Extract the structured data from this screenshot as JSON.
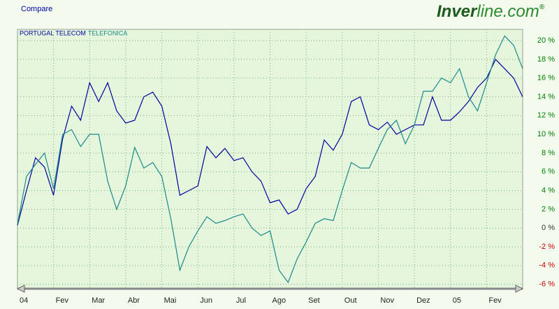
{
  "header": {
    "link": "Compare",
    "logo_brand": "Inver",
    "logo_rest": "line.com",
    "logo_mark": "®"
  },
  "chart_data": {
    "type": "line",
    "categories": [
      "04",
      null,
      null,
      null,
      "Fev",
      null,
      null,
      null,
      "Mar",
      null,
      null,
      null,
      "Abr",
      null,
      null,
      null,
      "Mai",
      null,
      null,
      null,
      "Jun",
      null,
      null,
      null,
      "Jul",
      null,
      null,
      null,
      "Ago",
      null,
      null,
      null,
      "Set",
      null,
      null,
      null,
      "Out",
      null,
      null,
      null,
      "Nov",
      null,
      null,
      null,
      "Dez",
      null,
      null,
      null,
      "05",
      null,
      null,
      null,
      "Fev",
      null,
      null,
      null,
      null
    ],
    "series": [
      {
        "name": "PORTUGAL TELECOM",
        "color": "#0000a0",
        "values": [
          0.3,
          4,
          7.5,
          6.5,
          3.5,
          9.5,
          13,
          11.5,
          15.5,
          13.5,
          15.5,
          12.5,
          11.2,
          11.5,
          14,
          14.5,
          13,
          9,
          3.5,
          4,
          4.5,
          8.7,
          7.5,
          8.5,
          7.2,
          7.5,
          6,
          5,
          2.7,
          3,
          1.5,
          2,
          4.2,
          5.5,
          9.4,
          8.3,
          10,
          13.5,
          14,
          11,
          10.5,
          11.3,
          10,
          10.5,
          11,
          11,
          14,
          11.5,
          11.5,
          12.4,
          13.5,
          15,
          16,
          18,
          17,
          16,
          14
        ]
      },
      {
        "name": "TELEFONICA",
        "color": "#1a8a8a",
        "values": [
          0.4,
          5.5,
          6.8,
          8,
          4.2,
          10,
          10.5,
          8.7,
          10,
          10,
          5,
          2,
          4.5,
          8.6,
          6.4,
          7,
          5.5,
          1,
          -4.5,
          -2,
          -0.3,
          1.2,
          0.5,
          0.8,
          1.2,
          1.5,
          0,
          -0.8,
          -0.3,
          -4.5,
          -5.8,
          -3.3,
          -1.5,
          0.5,
          1,
          0.8,
          4,
          7,
          6.4,
          6.4,
          8.5,
          10.5,
          11.5,
          9,
          11,
          14.6,
          14.6,
          16,
          15.5,
          17,
          14,
          12.5,
          15.5,
          18.5,
          20.5,
          19.5,
          17
        ]
      }
    ],
    "ylim": [
      -6.4,
      21.2
    ],
    "yticks": [
      {
        "value": -6,
        "label": "-6 %"
      },
      {
        "value": -4,
        "label": "-4 %"
      },
      {
        "value": -2,
        "label": "-2 %"
      },
      {
        "value": 0,
        "label": "0 %"
      },
      {
        "value": 2,
        "label": "2 %"
      },
      {
        "value": 4,
        "label": "4 %"
      },
      {
        "value": 6,
        "label": "6 %"
      },
      {
        "value": 8,
        "label": "8 %"
      },
      {
        "value": 10,
        "label": "10 %"
      },
      {
        "value": 12,
        "label": "12 %"
      },
      {
        "value": 14,
        "label": "14 %"
      },
      {
        "value": 16,
        "label": "16 %"
      },
      {
        "value": 18,
        "label": "18 %"
      },
      {
        "value": 20,
        "label": "20 %"
      }
    ],
    "grid": true,
    "legend": "top-left",
    "y_axis_side": "right"
  }
}
